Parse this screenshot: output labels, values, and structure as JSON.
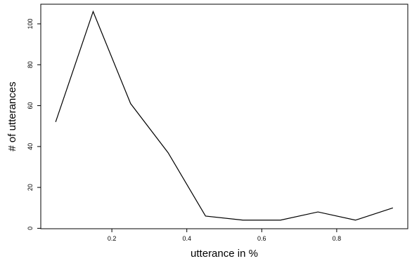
{
  "chart_data": {
    "type": "line",
    "title": "",
    "xlabel": "utterance in %",
    "ylabel": "# of utterances",
    "x": [
      0.05,
      0.15,
      0.25,
      0.35,
      0.45,
      0.55,
      0.65,
      0.75,
      0.85,
      0.95
    ],
    "series": [
      {
        "values": [
          52,
          106,
          61,
          37,
          6,
          4,
          4,
          8,
          4,
          10
        ]
      }
    ],
    "xlim": [
      0.0103,
      0.9897
    ],
    "ylim": [
      -0.2,
      109.6
    ],
    "x_ticks": [
      0.2,
      0.4,
      0.6,
      0.8
    ],
    "x_tick_labels": [
      "0.2",
      "0.4",
      "0.6",
      "0.8"
    ],
    "y_ticks": [
      0,
      20,
      40,
      60,
      80,
      100
    ],
    "y_tick_labels": [
      "0",
      "20",
      "40",
      "60",
      "80",
      "100"
    ],
    "grid": false,
    "legend": "none",
    "box": true,
    "line_color": "#000000"
  }
}
